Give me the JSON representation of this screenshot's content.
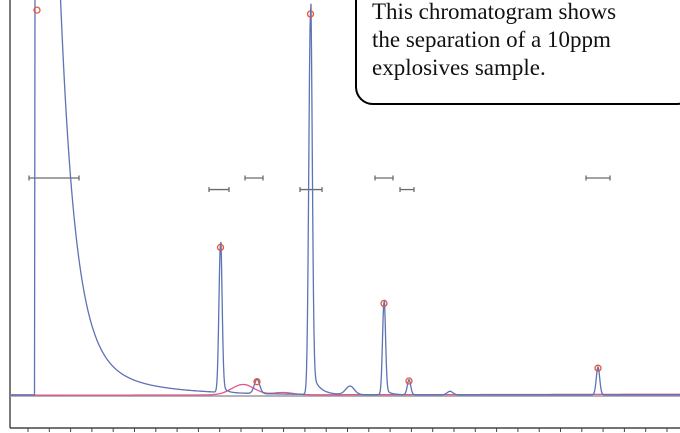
{
  "annotation": {
    "text": "This chromatogram shows\nthe separation of a 10ppm\nexplosives sample."
  },
  "chart_data": {
    "type": "line",
    "title": "",
    "xlabel": "",
    "ylabel": "",
    "ylim": [
      0,
      100
    ],
    "grid": false,
    "colors": {
      "signal": "#5d73b5",
      "baseline": "#e0578f",
      "peak_marker": "#e8543f",
      "window": "#6b6b6b"
    },
    "peaks": [
      {
        "x": 37.0,
        "height": 100,
        "clipped": true
      },
      {
        "x": 220.5,
        "height": 38.5
      },
      {
        "x": 257.0,
        "height": 3.7
      },
      {
        "x": 310.5,
        "height": 99.0
      },
      {
        "x": 384.0,
        "height": 24.0
      },
      {
        "x": 409.0,
        "height": 3.9
      },
      {
        "x": 598.0,
        "height": 7.2
      }
    ],
    "retention_windows": [
      {
        "from": 29,
        "to": 79,
        "level": 56.5
      },
      {
        "from": 209,
        "to": 229,
        "level": 53.5
      },
      {
        "from": 245,
        "to": 263,
        "level": 56.5
      },
      {
        "from": 300,
        "to": 322,
        "level": 53.5
      },
      {
        "from": 375,
        "to": 393,
        "level": 56.5
      },
      {
        "from": 400,
        "to": 414,
        "level": 53.5
      },
      {
        "from": 586,
        "to": 610,
        "level": 56.5
      }
    ]
  }
}
